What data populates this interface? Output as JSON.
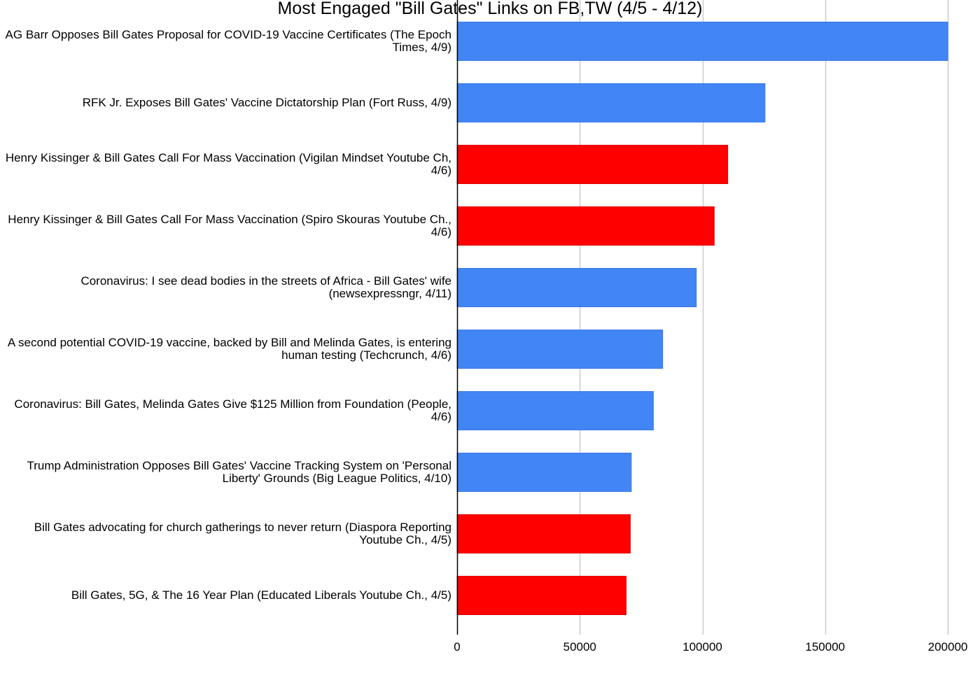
{
  "chart_data": {
    "type": "bar",
    "orientation": "horizontal",
    "title": "Most Engaged \"Bill Gates\" Links on FB,TW (4/5 - 4/12)",
    "xlabel": "",
    "ylabel": "",
    "xlim": [
      0,
      200000
    ],
    "ticks": [
      "0",
      "50000",
      "100000",
      "150000",
      "200000"
    ],
    "tick_values": [
      0,
      50000,
      100000,
      150000,
      200000
    ],
    "grid": true,
    "legend": "none",
    "colors": {
      "blue": "#4285f4",
      "red": "#ff0000",
      "blue_edge": "#3b78e7",
      "red_edge": "#e00000",
      "grid": "#cccccc",
      "axis": "#000000"
    },
    "categories": [
      "AG Barr Opposes Bill Gates Proposal for COVID-19 Vaccine Certificates (The Epoch Times, 4/9)",
      "RFK Jr. Exposes Bill Gates' Vaccine Dictatorship Plan (Fort Russ, 4/9)",
      "Henry Kissinger & Bill Gates Call For Mass Vaccination (Vigilan Mindset Youtube Ch, 4/6)",
      "Henry Kissinger & Bill Gates Call For Mass Vaccination (Spiro Skouras Youtube Ch., 4/6)",
      "Coronavirus: I see dead bodies in the streets of Africa - Bill Gates' wife (newsexpressngr, 4/11)",
      "A second potential COVID-19 vaccine, backed by Bill and Melinda Gates, is entering human testing (Techcrunch, 4/6)",
      "Coronavirus: Bill Gates, Melinda Gates Give $125 Million from Foundation (People, 4/6)",
      "Trump Administration Opposes Bill Gates' Vaccine Tracking System on 'Personal Liberty' Grounds (Big League Politics, 4/10)",
      "Bill Gates advocating for church gatherings to never return (Diaspora Reporting Youtube Ch., 4/5)",
      "Bill Gates, 5G, & The 16 Year Plan (Educated Liberals Youtube Ch., 4/5)"
    ],
    "values": [
      200000,
      125500,
      110300,
      104800,
      97500,
      83800,
      80000,
      71000,
      70600,
      68900
    ],
    "bar_colors": [
      "blue",
      "blue",
      "red",
      "red",
      "blue",
      "blue",
      "blue",
      "blue",
      "red",
      "red"
    ]
  }
}
